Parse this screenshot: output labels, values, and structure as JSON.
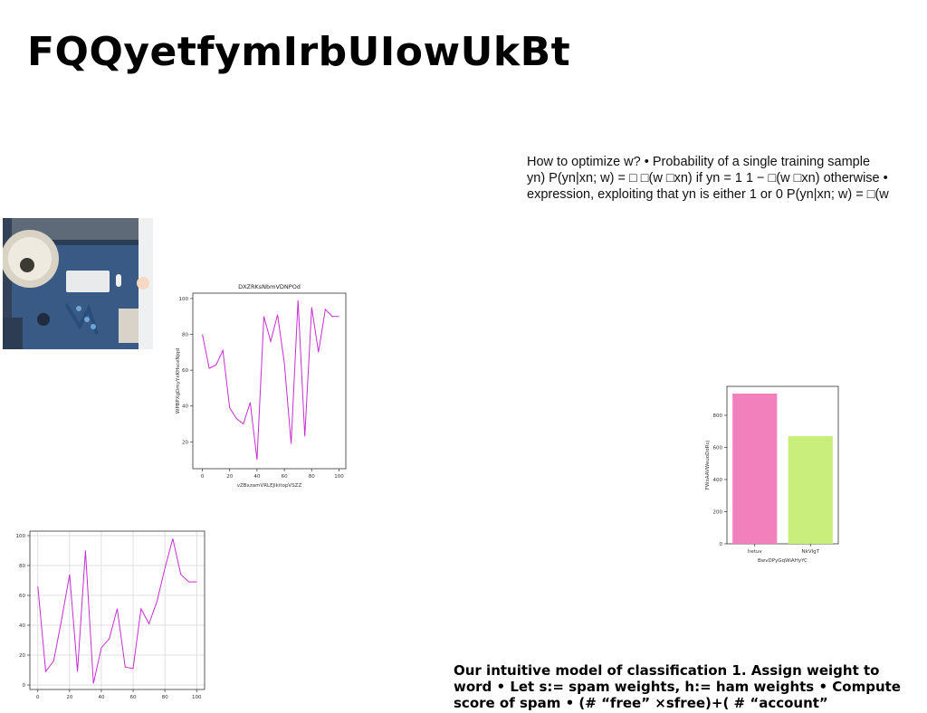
{
  "slide": {
    "title": "FQQyetfymIrbUIowUkBt",
    "body_lines": [
      "How to optimize w? • Probability of a single training sample",
      "yn) P(yn|xn; w) = □ □(w □xn) if yn = 1 1 − □(w □xn) otherwise •",
      "expression, exploiting that yn is either 1 or 0 P(yn|xn; w) = □(w"
    ],
    "bottom_lines": [
      "Our intuitive model of classification 1. Assign weight to",
      "word • Let s:= spam weights, h:= ham weights • Compute",
      "score of spam • (# “free” ×sfree)+( # “account”"
    ],
    "photo_icon": "desk-lamp-keyboard-photo"
  },
  "chart_data": [
    {
      "type": "line",
      "title": "DXZRKsNbmVDNPOd",
      "xlabel": "vZBxzamVRLEJikitopVSZZ",
      "ylabel": "WPBPXgDmyYxKHsceNjqd",
      "x": [
        0,
        5,
        10,
        15,
        20,
        25,
        30,
        35,
        40,
        45,
        50,
        55,
        60,
        65,
        70,
        75,
        80,
        85,
        90,
        95,
        100
      ],
      "series": [
        {
          "values": [
            80,
            61,
            63,
            71,
            39,
            33,
            30,
            42,
            10,
            90,
            76,
            91,
            64,
            19,
            99,
            23,
            95,
            70,
            94,
            90,
            90
          ]
        }
      ],
      "xlim": [
        -7,
        105
      ],
      "ylim": [
        5,
        103
      ],
      "xticks": [
        0,
        20,
        40,
        60,
        80,
        100
      ],
      "yticks": [
        20,
        40,
        60,
        80,
        100
      ],
      "grid": false,
      "color": "#c42fd1"
    },
    {
      "type": "line",
      "title": "",
      "xlabel": "",
      "ylabel": "",
      "x": [
        0,
        5,
        10,
        15,
        20,
        25,
        30,
        35,
        40,
        45,
        50,
        55,
        60,
        65,
        70,
        75,
        80,
        85,
        90,
        95,
        100
      ],
      "series": [
        {
          "values": [
            66,
            9,
            16,
            44,
            74,
            9,
            90,
            1,
            25,
            31,
            51,
            12,
            11,
            51,
            41,
            56,
            78,
            98,
            74,
            69,
            69
          ]
        }
      ],
      "xlim": [
        -5,
        105
      ],
      "ylim": [
        -3,
        103
      ],
      "xticks": [
        0,
        20,
        40,
        60,
        80,
        100
      ],
      "yticks": [
        0,
        20,
        40,
        60,
        80,
        100
      ],
      "grid": true,
      "color": "#c42fd1"
    },
    {
      "type": "bar",
      "title": "",
      "xlabel": "BwvDPyGqWiAHyYC",
      "ylabel": "FWxAAVWeuoDoRcj",
      "categories": [
        "hetuv",
        "NkVlgT"
      ],
      "values": [
        935,
        670
      ],
      "colors": [
        "#f280bd",
        "#c9ee7b"
      ],
      "ylim": [
        0,
        980
      ],
      "yticks": [
        0,
        200,
        400,
        600,
        800
      ],
      "grid": false
    }
  ]
}
